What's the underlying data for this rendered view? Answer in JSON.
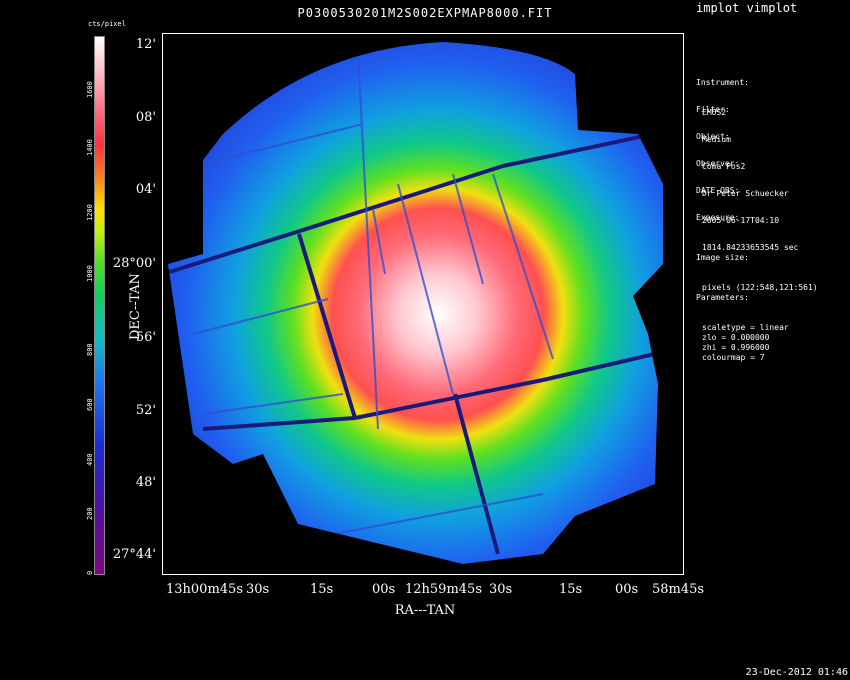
{
  "app_title": "implot vimplot",
  "main_title": "P0300530201M2S002EXPMAP8000.FIT",
  "colorbar": {
    "unit": "cts/pixel",
    "ticks": [
      "0",
      "200",
      "400",
      "600",
      "800",
      "1000",
      "1200",
      "1400",
      "1600"
    ]
  },
  "axes": {
    "xlabel": "RA---TAN",
    "ylabel": "DEC--TAN",
    "x_ticks": [
      "13h00m45s",
      "30s",
      "15s",
      "00s",
      "12h59m45s",
      "30s",
      "15s",
      "00s",
      "58m45s"
    ],
    "y_ticks": [
      "12'",
      "08'",
      "04'",
      "28°00'",
      "56'",
      "52'",
      "48'",
      "27°44'"
    ]
  },
  "info": [
    {
      "label": "Instrument:",
      "value": "EMOS2"
    },
    {
      "label": "Filter:",
      "value": "Medium"
    },
    {
      "label": "Object:",
      "value": "Coma Pos2"
    },
    {
      "label": "Observer:",
      "value": "Dr Peter Schuecker"
    },
    {
      "label": "DATE-OBS:",
      "value": "2005-06-17T04:10"
    },
    {
      "label": "Exposure:",
      "value": "1814.84233653545 sec"
    },
    {
      "label": "Image size:",
      "value": "pixels (122:548,121:561)"
    },
    {
      "label": "Parameters:",
      "value": "scaletype = linear\nzlo = 0.000000\nzhi = 0.996000\ncolourmap = 7"
    }
  ],
  "timestamp": "23-Dec-2012 01:46"
}
